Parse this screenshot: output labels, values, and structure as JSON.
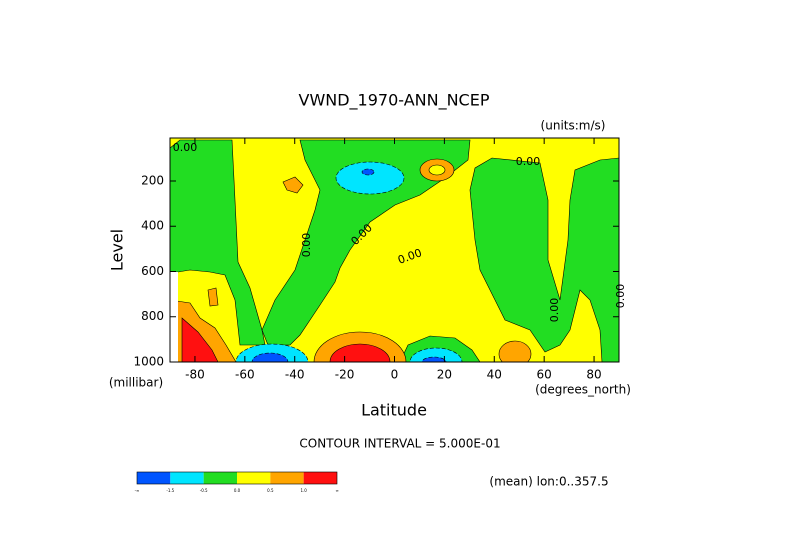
{
  "chart_data": {
    "type": "contour",
    "title": "VWND_1970-ANN_NCEP",
    "units_label": "(units:m/s)",
    "x_label": "Latitude",
    "x_unit": "(degrees_north)",
    "y_label": "Level",
    "y_unit": "(millibar)",
    "xlim": [
      -90,
      90
    ],
    "xticks": [
      -80,
      -60,
      -40,
      -20,
      0,
      20,
      40,
      60,
      80
    ],
    "ylim": [
      1000,
      10
    ],
    "yticks": [
      200,
      400,
      600,
      800,
      1000
    ],
    "contour_labels": [
      "0.00",
      "0.00",
      "0.00",
      "0.00",
      "0.00",
      "0.00",
      "0.00"
    ],
    "footer": "CONTOUR INTERVAL = 5.000E-01",
    "note": "(mean) lon:0..357.5",
    "colorbar": {
      "colors": [
        "#0055ff",
        "#00e5ff",
        "#22dd22",
        "#ffff00",
        "#ffa500",
        "#ff1010"
      ],
      "labels": [
        "-∞",
        "-1.5",
        "-0.5",
        "0.0",
        "0.5",
        "1.0",
        "∞"
      ]
    }
  }
}
